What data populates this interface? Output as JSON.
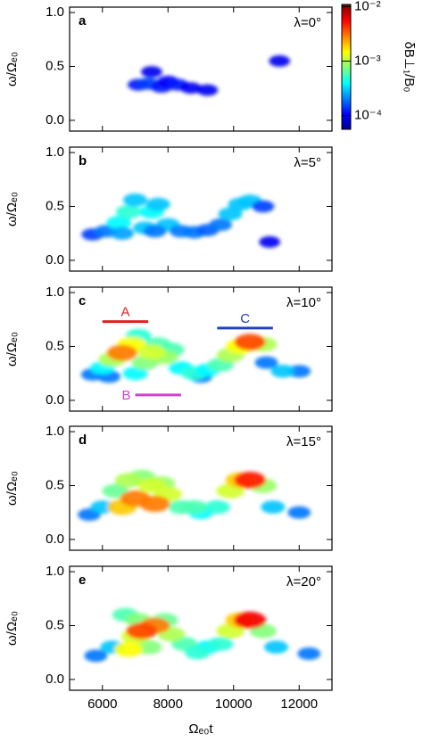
{
  "chart_data": [
    {
      "type": "heatmap",
      "panel_label": "a",
      "title": "λ=0°",
      "ylabel": "ω/Ωₑ₀",
      "colormap": "jet",
      "xlim": [
        5000,
        13000
      ],
      "ylim": [
        -0.1,
        1.05
      ],
      "yticks": [
        {
          "value": 0,
          "label": "0.0"
        },
        {
          "value": 0.5,
          "label": "0.5"
        },
        {
          "value": 1,
          "label": "1.0"
        }
      ],
      "x": [
        7100,
        7400,
        7800,
        8000,
        8300,
        8700,
        9200,
        7500,
        11400
      ],
      "y": [
        0.33,
        0.34,
        0.31,
        0.36,
        0.33,
        0.3,
        0.28,
        0.45,
        0.55
      ],
      "values": [
        0.00012,
        0.00015,
        0.00012,
        0.00011,
        0.00012,
        0.0001,
        0.0001,
        0.0001,
        0.0001
      ],
      "colorbar": {
        "label": "δB⊥₁/B₀",
        "log": true,
        "lim": [
          5.6e-05,
          0.011
        ],
        "ticks": [
          {
            "value": 0.0001,
            "label": "10⁻⁴"
          },
          {
            "value": 0.001,
            "label": "10⁻³"
          },
          {
            "value": 0.01,
            "label": "10⁻²"
          }
        ]
      }
    },
    {
      "type": "heatmap",
      "panel_label": "b",
      "title": "λ=5°",
      "ylabel": "ω/Ωₑ₀",
      "colormap": "jet",
      "xlim": [
        5000,
        13000
      ],
      "ylim": [
        -0.1,
        1.05
      ],
      "yticks": [
        {
          "value": 0,
          "label": "0.0"
        },
        {
          "value": 0.5,
          "label": "0.5"
        },
        {
          "value": 1,
          "label": "1.0"
        }
      ],
      "x": [
        5700,
        6100,
        6500,
        6800,
        7000,
        7300,
        7500,
        7700,
        8000,
        8400,
        8800,
        9200,
        9600,
        9900,
        10200,
        10500,
        10900,
        11100,
        6600,
        7600
      ],
      "y": [
        0.24,
        0.27,
        0.35,
        0.45,
        0.56,
        0.3,
        0.45,
        0.52,
        0.33,
        0.27,
        0.26,
        0.28,
        0.33,
        0.43,
        0.52,
        0.55,
        0.5,
        0.17,
        0.25,
        0.27
      ],
      "values": [
        0.00015,
        0.0002,
        0.0004,
        0.0005,
        0.0003,
        0.0003,
        0.0004,
        0.0003,
        0.0003,
        0.0002,
        0.0002,
        0.00018,
        0.0002,
        0.0003,
        0.0003,
        0.0003,
        0.00015,
        0.0001,
        0.00025,
        0.0002
      ]
    },
    {
      "type": "heatmap",
      "panel_label": "c",
      "title": "λ=10°",
      "ylabel": "ω/Ωₑ₀",
      "colormap": "jet",
      "xlim": [
        5000,
        13000
      ],
      "ylim": [
        -0.1,
        1.05
      ],
      "yticks": [
        {
          "value": 0,
          "label": "0.0"
        },
        {
          "value": 0.5,
          "label": "0.5"
        },
        {
          "value": 1,
          "label": "1.0"
        }
      ],
      "x": [
        5700,
        6200,
        7000,
        9000,
        11000,
        12000,
        6000,
        8400,
        8800,
        9200,
        11500,
        7100,
        7700,
        8100,
        9600,
        10900,
        7300,
        7900,
        6900,
        6300,
        7500,
        9900,
        10200,
        6600,
        10500
      ],
      "y": [
        0.24,
        0.22,
        0.25,
        0.22,
        0.35,
        0.27,
        0.3,
        0.3,
        0.25,
        0.28,
        0.27,
        0.6,
        0.52,
        0.47,
        0.33,
        0.52,
        0.35,
        0.4,
        0.52,
        0.38,
        0.45,
        0.42,
        0.5,
        0.44,
        0.54
      ],
      "values": [
        0.0002,
        0.0002,
        0.0004,
        0.0002,
        0.0002,
        0.0002,
        0.0004,
        0.0004,
        0.0005,
        0.0004,
        0.0003,
        0.0005,
        0.0006,
        0.0006,
        0.0006,
        0.001,
        0.0008,
        0.0009,
        0.0015,
        0.001,
        0.0012,
        0.001,
        0.0015,
        0.003,
        0.004
      ],
      "annotations": [
        {
          "text": "A",
          "color": "#e02020",
          "x": [
            6000,
            7400
          ],
          "y": 0.73
        },
        {
          "text": "B",
          "color": "#d040d0",
          "x": [
            7000,
            8400
          ],
          "y": 0.05
        },
        {
          "text": "C",
          "color": "#2040c0",
          "x": [
            9500,
            11200
          ],
          "y": 0.67
        }
      ]
    },
    {
      "type": "heatmap",
      "panel_label": "d",
      "title": "λ=15°",
      "ylabel": "ω/Ωₑ₀",
      "colormap": "jet",
      "xlim": [
        5000,
        13000
      ],
      "ylim": [
        -0.1,
        1.05
      ],
      "yticks": [
        {
          "value": 0,
          "label": "0.0"
        },
        {
          "value": 0.5,
          "label": "0.5"
        },
        {
          "value": 1,
          "label": "1.0"
        }
      ],
      "x": [
        5600,
        6000,
        9000,
        11200,
        12000,
        9500,
        6400,
        7200,
        7800,
        8400,
        8800,
        6800,
        7500,
        8000,
        9900,
        10900,
        6600,
        7000,
        7600,
        10200,
        10500
      ],
      "y": [
        0.23,
        0.3,
        0.25,
        0.3,
        0.25,
        0.3,
        0.45,
        0.58,
        0.52,
        0.3,
        0.3,
        0.55,
        0.5,
        0.42,
        0.45,
        0.5,
        0.3,
        0.38,
        0.33,
        0.55,
        0.55
      ],
      "values": [
        0.0002,
        0.0003,
        0.0004,
        0.0003,
        0.0002,
        0.0005,
        0.0007,
        0.0008,
        0.0009,
        0.0006,
        0.0006,
        0.001,
        0.0012,
        0.0012,
        0.0012,
        0.0009,
        0.002,
        0.003,
        0.003,
        0.002,
        0.005
      ]
    },
    {
      "type": "heatmap",
      "panel_label": "e",
      "title": "λ=20°",
      "ylabel": "ω/Ωₑ₀",
      "xlabel": "Ωₑ₀t",
      "colormap": "jet",
      "xlim": [
        5000,
        13000
      ],
      "ylim": [
        -0.1,
        1.05
      ],
      "xticks": [
        6000,
        8000,
        10000,
        12000
      ],
      "yticks": [
        {
          "value": 0,
          "label": "0.0"
        },
        {
          "value": 0.5,
          "label": "0.5"
        },
        {
          "value": 1,
          "label": "1.0"
        }
      ],
      "x": [
        5800,
        6300,
        9200,
        11300,
        12300,
        9600,
        6700,
        7100,
        7900,
        8500,
        8900,
        7400,
        7000,
        8100,
        9900,
        10900,
        6800,
        7600,
        10200,
        7200,
        10500
      ],
      "y": [
        0.22,
        0.3,
        0.3,
        0.3,
        0.24,
        0.33,
        0.6,
        0.55,
        0.55,
        0.33,
        0.25,
        0.3,
        0.4,
        0.42,
        0.45,
        0.45,
        0.28,
        0.5,
        0.55,
        0.45,
        0.55
      ],
      "values": [
        0.0002,
        0.0003,
        0.0004,
        0.0003,
        0.0002,
        0.0005,
        0.0006,
        0.0008,
        0.0007,
        0.0006,
        0.0005,
        0.0008,
        0.0012,
        0.001,
        0.0012,
        0.0008,
        0.0015,
        0.003,
        0.002,
        0.004,
        0.006
      ]
    }
  ]
}
